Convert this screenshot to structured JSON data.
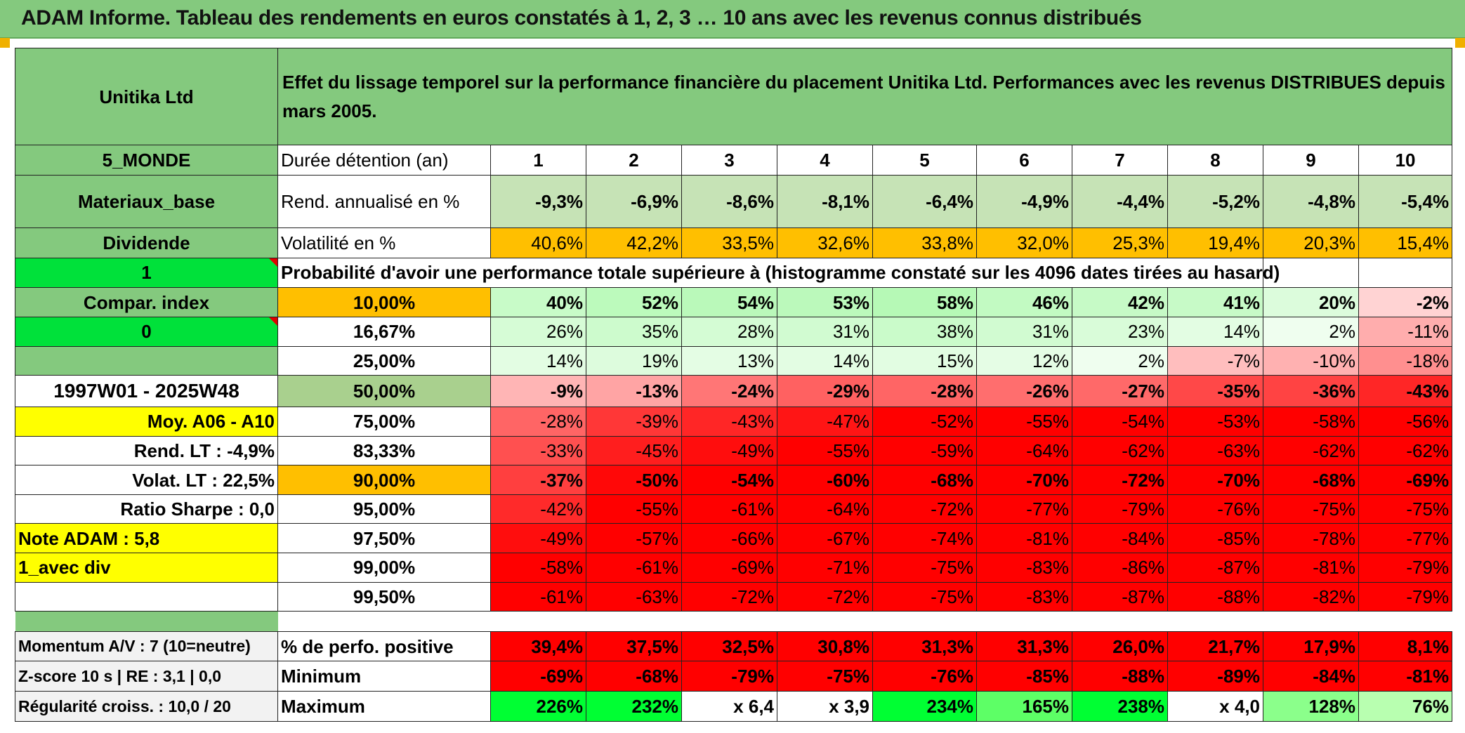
{
  "title": "ADAM Informe. Tableau des rendements en euros constatés à 1, 2, 3 … 10 ans avec les revenus connus distribués",
  "sidebar": {
    "name": "Unitika Ltd",
    "zone": "5_MONDE",
    "sector": "Materiaux_base",
    "dividend_label": "Dividende",
    "input1": "1",
    "compar": "Compar. index",
    "input2": "0",
    "period": "1997W01 - 2025W48",
    "moy": "Moy. A06 - A10",
    "rend_lt": "Rend. LT :    -4,9%",
    "volat_lt": "Volat. LT :    22,5%",
    "sharpe": "Ratio Sharpe :    0,0",
    "note": "Note ADAM : 5,8",
    "div_mode": "1_avec div"
  },
  "header_text": "Effet du lissage temporel sur la performance financière du placement Unitika Ltd. Performances avec les revenus DISTRIBUES depuis mars 2005.",
  "table": {
    "duree_label": "Durée détention (an)",
    "years": [
      "1",
      "2",
      "3",
      "4",
      "5",
      "6",
      "7",
      "8",
      "9",
      "10"
    ],
    "rend_label": "Rend. annualisé en %",
    "rend": [
      "-9,3%",
      "-6,9%",
      "-8,6%",
      "-8,1%",
      "-6,4%",
      "-4,9%",
      "-4,4%",
      "-5,2%",
      "-4,8%",
      "-5,4%"
    ],
    "vol_label": "Volatilité en %",
    "vol": [
      "40,6%",
      "42,2%",
      "33,5%",
      "32,6%",
      "33,8%",
      "32,0%",
      "25,3%",
      "19,4%",
      "20,3%",
      "15,4%"
    ],
    "proba_label": "Probabilité d'avoir une performance totale supérieure à (histogramme constaté sur les 4096 dates tirées au hasard)",
    "percentiles": [
      {
        "p": "10,00%",
        "v": [
          "40%",
          "52%",
          "54%",
          "53%",
          "58%",
          "46%",
          "42%",
          "41%",
          "20%",
          "-2%"
        ]
      },
      {
        "p": "16,67%",
        "v": [
          "26%",
          "35%",
          "28%",
          "31%",
          "38%",
          "31%",
          "23%",
          "14%",
          "2%",
          "-11%"
        ]
      },
      {
        "p": "25,00%",
        "v": [
          "14%",
          "19%",
          "13%",
          "14%",
          "15%",
          "12%",
          "2%",
          "-7%",
          "-10%",
          "-18%"
        ]
      },
      {
        "p": "50,00%",
        "v": [
          "-9%",
          "-13%",
          "-24%",
          "-29%",
          "-28%",
          "-26%",
          "-27%",
          "-35%",
          "-36%",
          "-43%"
        ]
      },
      {
        "p": "75,00%",
        "v": [
          "-28%",
          "-39%",
          "-43%",
          "-47%",
          "-52%",
          "-55%",
          "-54%",
          "-53%",
          "-58%",
          "-56%"
        ]
      },
      {
        "p": "83,33%",
        "v": [
          "-33%",
          "-45%",
          "-49%",
          "-55%",
          "-59%",
          "-64%",
          "-62%",
          "-63%",
          "-62%",
          "-62%"
        ]
      },
      {
        "p": "90,00%",
        "v": [
          "-37%",
          "-50%",
          "-54%",
          "-60%",
          "-68%",
          "-70%",
          "-72%",
          "-70%",
          "-68%",
          "-69%"
        ]
      },
      {
        "p": "95,00%",
        "v": [
          "-42%",
          "-55%",
          "-61%",
          "-64%",
          "-72%",
          "-77%",
          "-79%",
          "-76%",
          "-75%",
          "-75%"
        ]
      },
      {
        "p": "97,50%",
        "v": [
          "-49%",
          "-57%",
          "-66%",
          "-67%",
          "-74%",
          "-81%",
          "-84%",
          "-85%",
          "-78%",
          "-77%"
        ]
      },
      {
        "p": "99,00%",
        "v": [
          "-58%",
          "-61%",
          "-69%",
          "-71%",
          "-75%",
          "-83%",
          "-86%",
          "-87%",
          "-81%",
          "-79%"
        ]
      },
      {
        "p": "99,50%",
        "v": [
          "-61%",
          "-63%",
          "-72%",
          "-72%",
          "-75%",
          "-83%",
          "-87%",
          "-88%",
          "-82%",
          "-79%"
        ]
      }
    ],
    "bottom": [
      {
        "side": "Momentum A/V : 7 (10=neutre)",
        "label": "% de perfo. positive",
        "v": [
          "39,4%",
          "37,5%",
          "32,5%",
          "30,8%",
          "31,3%",
          "31,3%",
          "26,0%",
          "21,7%",
          "17,9%",
          "8,1%"
        ]
      },
      {
        "side": "Z-score 10 s | RE : 3,1 | 0,0",
        "label": "Minimum",
        "v": [
          "-69%",
          "-68%",
          "-79%",
          "-75%",
          "-76%",
          "-85%",
          "-88%",
          "-89%",
          "-84%",
          "-81%"
        ]
      },
      {
        "side": "Régularité croiss. : 10,0 / 20",
        "label": "Maximum",
        "v": [
          "226%",
          "232%",
          "x 6,4",
          "x 3,9",
          "234%",
          "165%",
          "238%",
          "x 4,0",
          "128%",
          "76%"
        ]
      }
    ]
  },
  "colors": {
    "header_green": "#84c97e",
    "light_green": "#c6e3b6",
    "orange": "#ffbf00",
    "yellow": "#ffff00",
    "bright_green": "#00e13a",
    "red": "#ff0000"
  }
}
